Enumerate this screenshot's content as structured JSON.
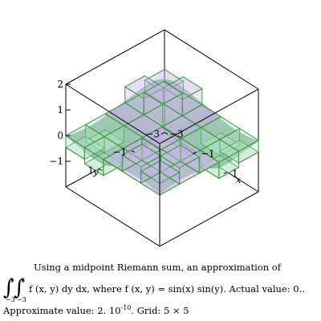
{
  "chart_data": {
    "type": "3d-bar",
    "title": "",
    "function": "f(x, y) = sin(x) sin(y)",
    "xlabel": "x",
    "ylabel": "y",
    "zlabel": "",
    "xlim": [
      -3,
      3
    ],
    "ylim": [
      -3,
      3
    ],
    "zlim": [
      -2,
      2
    ],
    "x_ticks": [
      "−3",
      "−1",
      "1"
    ],
    "y_ticks": [
      "−3",
      "−1",
      "1"
    ],
    "z_ticks": [
      "2",
      "1",
      "0",
      "−1"
    ],
    "x_centers": [
      -2.4,
      -1.2,
      0,
      1.2,
      2.4
    ],
    "y_centers": [
      -2.4,
      -1.2,
      0,
      1.2,
      2.4
    ],
    "grid": "5 × 5",
    "bar_colors": {
      "positive": "#c8b4e6",
      "negative": "#b4e6c8",
      "edge": "#3c963c"
    },
    "surface_color": "#2e6b4e"
  },
  "caption": {
    "line1": "Using a midpoint Riemann sum, an approximation of",
    "integrand": "f (x, y)  dy dx, where f (x, y) = sin(x) sin(y).  Actual value: 0..",
    "int_upper": "3",
    "int_lower": "−3",
    "approx_label": "Approximate value: 2. 10",
    "approx_exp": "-10",
    "grid_text": ".  Grid: 5 × 5"
  }
}
